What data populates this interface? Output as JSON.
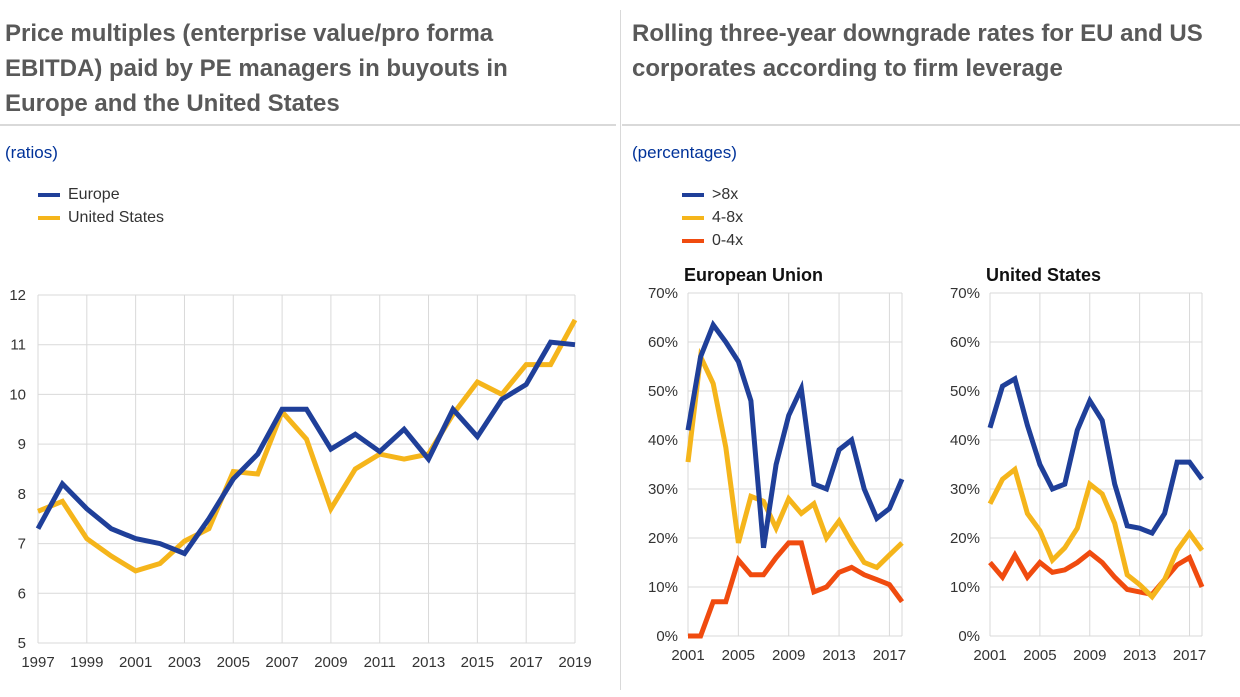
{
  "left_panel": {
    "title": "Price multiples (enterprise value/pro forma EBITDA) paid by PE managers in buyouts in Europe and the United States",
    "units": "(ratios)"
  },
  "right_panel": {
    "title": "Rolling three-year downgrade rates for EU and US corporates according to firm leverage",
    "units": "(percentages)"
  },
  "colors": {
    "blue": "#1f3f99",
    "yellow": "#f5b51b",
    "orange": "#f04b0f",
    "grid": "#d9d9d9",
    "text": "#333333"
  },
  "chart_data": [
    {
      "type": "line",
      "title": "",
      "xlabel": "",
      "ylabel": "",
      "ylim": [
        5,
        12
      ],
      "yticks": [
        "5",
        "6",
        "7",
        "8",
        "9",
        "10",
        "11",
        "12"
      ],
      "xticks": [
        "1997",
        "1999",
        "2001",
        "2003",
        "2005",
        "2007",
        "2009",
        "2011",
        "2013",
        "2015",
        "2017",
        "2019"
      ],
      "grid": true,
      "legend": "top-left",
      "x": [
        1997,
        1998,
        1999,
        2000,
        2001,
        2002,
        2003,
        2004,
        2005,
        2006,
        2007,
        2008,
        2009,
        2010,
        2011,
        2012,
        2013,
        2014,
        2015,
        2016,
        2017,
        2018,
        2019
      ],
      "series": [
        {
          "name": "Europe",
          "color": "#1f3f99",
          "values": [
            7.3,
            8.2,
            7.7,
            7.3,
            7.1,
            7.0,
            6.8,
            7.5,
            8.3,
            8.8,
            9.7,
            9.7,
            8.9,
            9.2,
            8.85,
            9.3,
            8.7,
            9.7,
            9.15,
            9.9,
            10.2,
            11.05,
            11.0
          ]
        },
        {
          "name": "United States",
          "color": "#f5b51b",
          "values": [
            7.65,
            7.85,
            7.1,
            6.75,
            6.45,
            6.6,
            7.05,
            7.3,
            8.45,
            8.4,
            9.65,
            9.1,
            7.7,
            8.5,
            8.8,
            8.7,
            8.8,
            9.6,
            10.25,
            10.0,
            10.6,
            10.6,
            11.5
          ]
        }
      ]
    },
    {
      "type": "line",
      "title": "European Union",
      "xlabel": "",
      "ylabel": "",
      "ylim": [
        0,
        70
      ],
      "yticks": [
        "0%",
        "10%",
        "20%",
        "30%",
        "40%",
        "50%",
        "60%",
        "70%"
      ],
      "xticks": [
        "2001",
        "2005",
        "2009",
        "2013",
        "2017"
      ],
      "grid": true,
      "x": [
        2001,
        2002,
        2003,
        2004,
        2005,
        2006,
        2007,
        2008,
        2009,
        2010,
        2011,
        2012,
        2013,
        2014,
        2015,
        2016,
        2017,
        2018
      ],
      "series": [
        {
          "name": ">8x",
          "color": "#1f3f99",
          "values": [
            42,
            57,
            63.5,
            60,
            56,
            48,
            18,
            35,
            45,
            50.5,
            31,
            30,
            38,
            40,
            30,
            24,
            26,
            32
          ]
        },
        {
          "name": "4-8x",
          "color": "#f5b51b",
          "values": [
            35.5,
            57,
            51.5,
            38.5,
            19,
            28.5,
            27.5,
            22,
            28,
            25,
            27,
            20,
            23.5,
            19,
            15,
            14,
            16.5,
            19
          ]
        },
        {
          "name": "0-4x",
          "color": "#f04b0f",
          "values": [
            0,
            0,
            7,
            7,
            15.5,
            12.5,
            12.5,
            16,
            19,
            19,
            9,
            10,
            13,
            14,
            12.5,
            11.5,
            10.5,
            7
          ]
        }
      ]
    },
    {
      "type": "line",
      "title": "United States",
      "xlabel": "",
      "ylabel": "",
      "ylim": [
        0,
        70
      ],
      "yticks": [
        "0%",
        "10%",
        "20%",
        "30%",
        "40%",
        "50%",
        "60%",
        "70%"
      ],
      "xticks": [
        "2001",
        "2005",
        "2009",
        "2013",
        "2017"
      ],
      "grid": true,
      "x": [
        2001,
        2002,
        2003,
        2004,
        2005,
        2006,
        2007,
        2008,
        2009,
        2010,
        2011,
        2012,
        2013,
        2014,
        2015,
        2016,
        2017,
        2018
      ],
      "series": [
        {
          "name": ">8x",
          "color": "#1f3f99",
          "values": [
            42.5,
            51,
            52.5,
            43,
            35,
            30,
            31,
            42,
            48,
            44,
            31,
            22.5,
            22,
            21,
            25,
            35.5,
            35.5,
            32
          ]
        },
        {
          "name": "4-8x",
          "color": "#f5b51b",
          "values": [
            27,
            32,
            34,
            25,
            21.5,
            15.5,
            18,
            22,
            31,
            29,
            23,
            12.5,
            10.5,
            8,
            11.5,
            17.5,
            21,
            17.5
          ]
        },
        {
          "name": "0-4x",
          "color": "#f04b0f",
          "values": [
            15,
            12,
            16.5,
            12,
            15,
            13,
            13.5,
            15,
            17,
            15,
            12,
            9.5,
            9,
            8.5,
            11.5,
            14.5,
            16,
            10
          ]
        }
      ]
    }
  ]
}
